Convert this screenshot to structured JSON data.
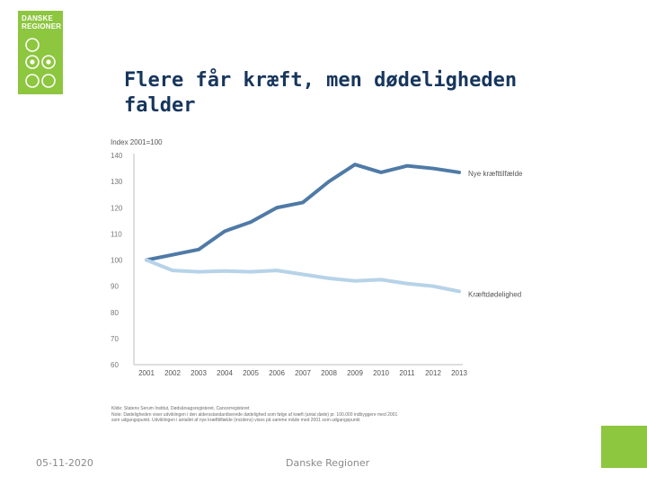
{
  "logo": {
    "line1": "DANSKE",
    "line2": "REGIONER",
    "color": "#8dc63f"
  },
  "slide": {
    "title_line1": "Flere får kræft, men dødeligheden",
    "title_line2": "falder",
    "date": "05-11-2020",
    "organization": "Danske Regioner"
  },
  "chart_data": {
    "type": "line",
    "ylabel": "Index 2001=100",
    "x": [
      "2001",
      "2002",
      "2003",
      "2004",
      "2005",
      "2006",
      "2007",
      "2008",
      "2009",
      "2010",
      "2011",
      "2012",
      "2013"
    ],
    "yticks": [
      60,
      70,
      80,
      90,
      100,
      110,
      120,
      130,
      140
    ],
    "ylim": [
      60,
      140
    ],
    "grid": false,
    "series": [
      {
        "name": "Nye kræfttilfælde",
        "color": "#4f7aa6",
        "values": [
          100,
          102,
          104,
          111,
          114.5,
          120,
          122,
          130,
          136.5,
          133.5,
          136,
          135,
          133.5
        ]
      },
      {
        "name": "Kræftdødelighed",
        "color": "#b6d3e8",
        "values": [
          100,
          96,
          95.5,
          95.8,
          95.5,
          96,
          94.5,
          93,
          92,
          92.5,
          91,
          90,
          88
        ]
      }
    ],
    "source": "Kilde: Statens Serum Institut, Dødsårsagsregisteret, Cancerregisteret",
    "note_line1": "Note: Dødeligheden viser udviklingen i den aldersstandardiserede dødelighed som følge af kræft (antal døde) pr. 100.000 indbyggere med 2001",
    "note_line2": "som udgangspunkt. Udviklingen i antallet af nye kræfttilfælde (incidens) vises på samme måde med 2001 som udgangspunkt"
  }
}
